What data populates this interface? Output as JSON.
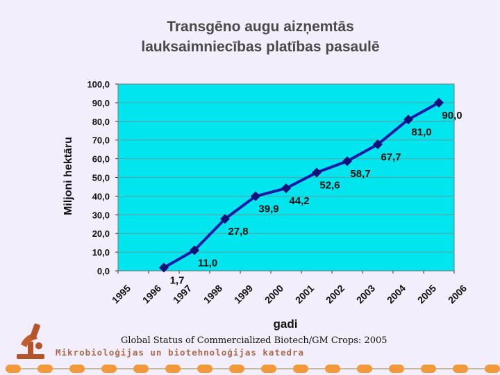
{
  "slide": {
    "title_line1": "Transgēno augu aizņemtās",
    "title_line2": "lauksaimniecības platības pasaulē",
    "source": "Global Status of Commercialized Biotech/GM Crops: 2005",
    "department": "Mikrobioloģijas un biotehnoloģijas katedra"
  },
  "colors": {
    "plot_bg": "#00e5ee",
    "series": "#1a1aa8",
    "text": "#111111"
  },
  "chart_data": {
    "type": "line",
    "xlabel": "gadi",
    "ylabel": "Miljoni hektāru",
    "ylim": [
      0,
      100
    ],
    "yticks": [
      "0,0",
      "10,0",
      "20,0",
      "30,0",
      "40,0",
      "50,0",
      "60,0",
      "70,0",
      "80,0",
      "90,0",
      "100,0"
    ],
    "xticks": [
      "1995",
      "1996",
      "1997",
      "1998",
      "1999",
      "2000",
      "2001",
      "2002",
      "2003",
      "2004",
      "2005",
      "2006"
    ],
    "grid": true,
    "series": [
      {
        "x": [
          "1996",
          "1997",
          "1998",
          "1999",
          "2000",
          "2001",
          "2002",
          "2003",
          "2004",
          "2005"
        ],
        "values": [
          1.7,
          11.0,
          27.8,
          39.9,
          44.2,
          52.6,
          58.7,
          67.7,
          81.0,
          90.0
        ],
        "labels": [
          "1,7",
          "11,0",
          "27,8",
          "39,9",
          "44,2",
          "52,6",
          "58,7",
          "67,7",
          "81,0",
          "90,0"
        ]
      }
    ]
  }
}
